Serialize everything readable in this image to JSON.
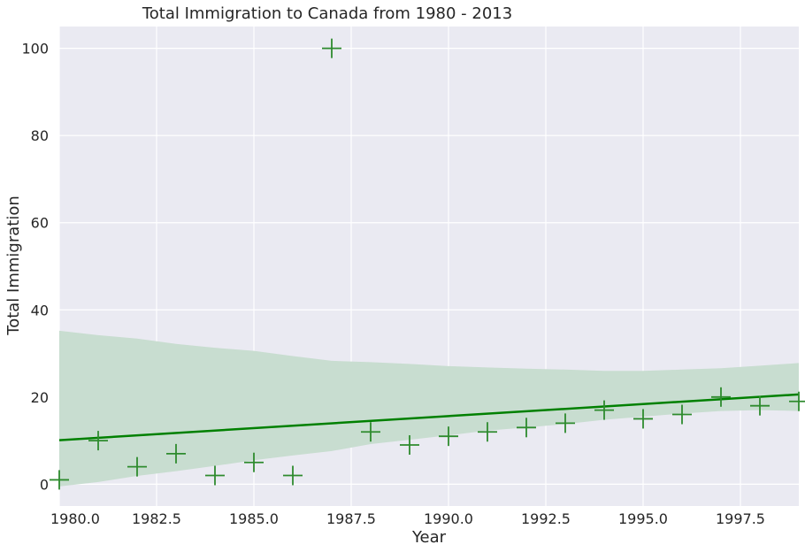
{
  "colors": {
    "background": "#eaeaf2",
    "grid": "#ffffff",
    "line": "#008000",
    "marker": "#2e8b2e",
    "band": "#c8ddd0"
  },
  "chart_data": {
    "type": "scatter",
    "title": "Total Immigration to Canada from 1980 - 2013",
    "xlabel": "Year",
    "ylabel": "Total Immigration",
    "xlim": [
      1980,
      1999
    ],
    "ylim": [
      -5,
      105
    ],
    "xticks": [
      1980.0,
      1982.5,
      1985.0,
      1987.5,
      1990.0,
      1992.5,
      1995.0,
      1997.5
    ],
    "xtick_labels": [
      "1980.0",
      "1982.5",
      "1985.0",
      "1987.5",
      "1990.0",
      "1992.5",
      "1995.0",
      "1997.5"
    ],
    "yticks": [
      0,
      20,
      40,
      60,
      80,
      100
    ],
    "ytick_labels": [
      "0",
      "20",
      "40",
      "60",
      "80",
      "100"
    ],
    "grid": true,
    "marker": "+",
    "points": [
      {
        "x": 1980,
        "y": 1
      },
      {
        "x": 1981,
        "y": 10
      },
      {
        "x": 1982,
        "y": 4
      },
      {
        "x": 1983,
        "y": 7
      },
      {
        "x": 1984,
        "y": 2
      },
      {
        "x": 1985,
        "y": 5
      },
      {
        "x": 1986,
        "y": 2
      },
      {
        "x": 1987,
        "y": 100
      },
      {
        "x": 1988,
        "y": 12
      },
      {
        "x": 1989,
        "y": 9
      },
      {
        "x": 1990,
        "y": 11
      },
      {
        "x": 1991,
        "y": 12
      },
      {
        "x": 1992,
        "y": 13
      },
      {
        "x": 1993,
        "y": 14
      },
      {
        "x": 1994,
        "y": 17
      },
      {
        "x": 1995,
        "y": 15
      },
      {
        "x": 1996,
        "y": 16
      },
      {
        "x": 1997,
        "y": 20
      },
      {
        "x": 1998,
        "y": 18
      },
      {
        "x": 1999,
        "y": 19
      }
    ],
    "regression_line": {
      "x": [
        1980,
        1999
      ],
      "y": [
        10.1,
        20.6
      ]
    },
    "confidence_band": {
      "x": [
        1980,
        1981,
        1982,
        1983,
        1984,
        1985,
        1986,
        1987,
        1988,
        1989,
        1990,
        1991,
        1992,
        1993,
        1994,
        1995,
        1996,
        1997,
        1998,
        1999
      ],
      "upper": [
        35.2,
        34.2,
        33.4,
        32.2,
        31.3,
        30.6,
        29.4,
        28.3,
        28.0,
        27.6,
        27.1,
        26.8,
        26.5,
        26.3,
        26.0,
        26.0,
        26.3,
        26.6,
        27.2,
        27.8
      ],
      "lower": [
        -0.5,
        0.5,
        1.9,
        3.0,
        4.2,
        5.5,
        6.6,
        7.6,
        9.2,
        10.2,
        11.2,
        12.3,
        13.0,
        13.8,
        14.8,
        15.5,
        16.2,
        16.8,
        17.0,
        16.8
      ]
    }
  }
}
